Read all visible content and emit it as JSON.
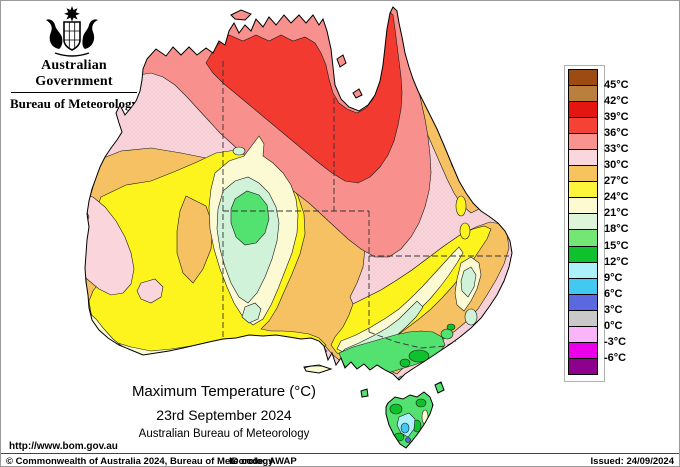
{
  "header": {
    "government": "Australian Government",
    "bureau": "Bureau of Meteorology"
  },
  "title": {
    "line1": "Maximum Temperature (°C)",
    "line2": "23rd September 2024",
    "line3": "Australian Bureau of Meteorology"
  },
  "legend": {
    "labels": [
      "45°C",
      "42°C",
      "39°C",
      "36°C",
      "33°C",
      "30°C",
      "27°C",
      "24°C",
      "21°C",
      "18°C",
      "15°C",
      "12°C",
      "9°C",
      "6°C",
      "3°C",
      "0°C",
      "-3°C",
      "-6°C"
    ],
    "colors": [
      "#9C4B13",
      "#BA7F3C",
      "#E31611",
      "#F54237",
      "#F8938F",
      "#FAD7DD",
      "#F7C35F",
      "#FDF53B",
      "#FBFAD2",
      "#DDF5D8",
      "#74E674",
      "#0EC22E",
      "#ACF1FA",
      "#43C8F2",
      "#5A69E0",
      "#C9C9C9",
      "#F9B5F9",
      "#EC00EC",
      "#8E018E"
    ]
  },
  "map": {
    "region": "Australia",
    "palette": {
      "sea": "#FFFFFF",
      "basePink": "#FAD6DC",
      "dot": "#E2A8B4",
      "salmon": "#F8918D",
      "red": "#F33A31",
      "orange": "#F6C162",
      "yellow": "#FCF41C",
      "cream": "#FBFAD2",
      "paleGreen": "#CFF2D8",
      "green": "#53E170",
      "darkGreen": "#0EC22E",
      "paleCyan": "#ACF1FA",
      "cyan": "#43C8F2",
      "blue": "#5A69E0",
      "coast": "#000000",
      "border": "#333333"
    }
  },
  "footer": {
    "url": "http://www.bom.gov.au",
    "copyright": "© Commonwealth of Australia 2024, Bureau of Meteorology",
    "id_code": "ID code: AWAP",
    "issued": "Issued: 24/09/2024"
  }
}
